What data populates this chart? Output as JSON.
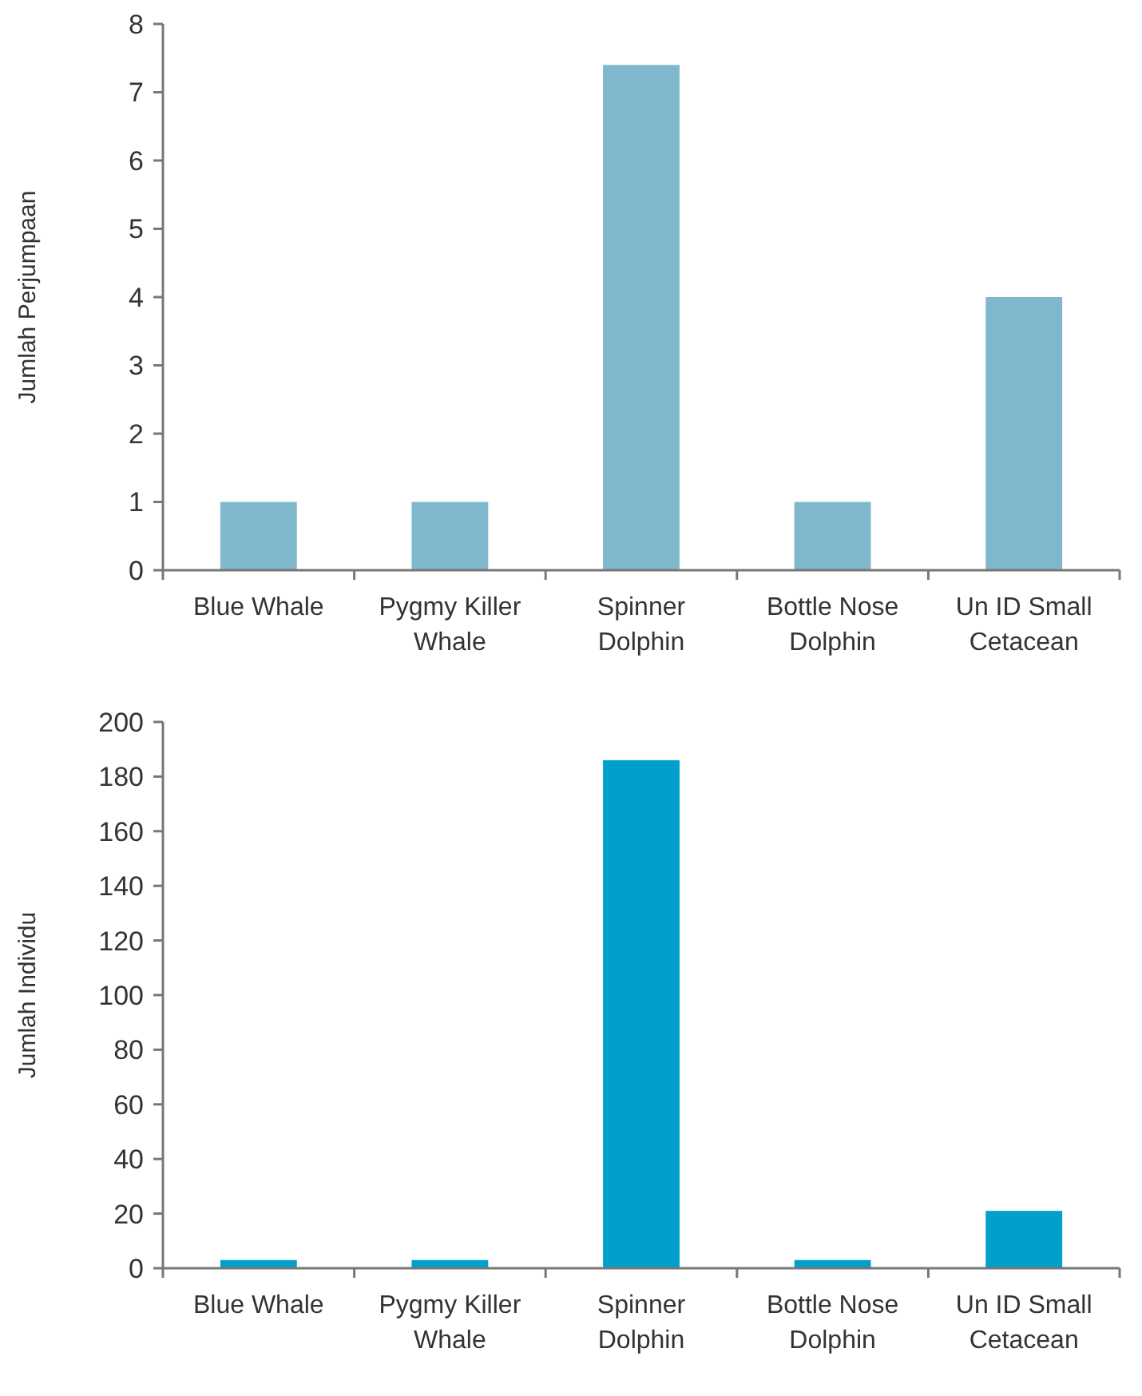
{
  "chart_data": [
    {
      "type": "bar",
      "ylabel": "Jumlah Perjumpaan",
      "categories": [
        "Blue Whale",
        "Pygmy Killer Whale",
        "Spinner Dolphin",
        "Bottle Nose Dolphin",
        "Un ID Small Cetacean"
      ],
      "values": [
        1,
        1,
        7.4,
        1,
        4
      ],
      "color": "#7fb8cc",
      "ylim": [
        0,
        8
      ],
      "yticks": [
        0,
        1,
        2,
        3,
        4,
        5,
        6,
        7,
        8
      ]
    },
    {
      "type": "bar",
      "ylabel": "Jumlah Individu",
      "categories": [
        "Blue Whale",
        "Pygmy Killer Whale",
        "Spinner Dolphin",
        "Bottle Nose Dolphin",
        "Un ID Small Cetacean"
      ],
      "values": [
        3,
        3,
        186,
        3,
        21
      ],
      "color": "#009fcc",
      "ylim": [
        0,
        200
      ],
      "yticks": [
        0,
        20,
        40,
        60,
        80,
        100,
        120,
        140,
        160,
        180,
        200
      ]
    }
  ]
}
